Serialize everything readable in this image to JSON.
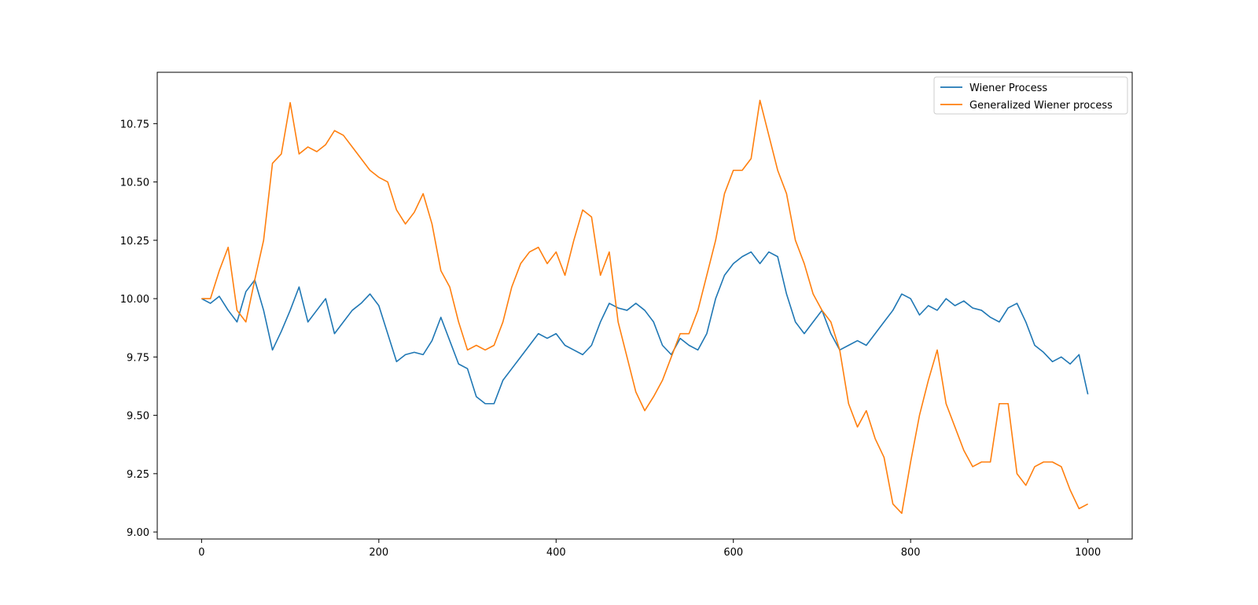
{
  "chart_data": {
    "type": "line",
    "title": "",
    "xlabel": "",
    "ylabel": "",
    "xlim": [
      -50,
      1050
    ],
    "ylim": [
      8.97,
      10.97
    ],
    "x_ticks": [
      0,
      200,
      400,
      600,
      800,
      1000
    ],
    "x_tick_labels": [
      "0",
      "200",
      "400",
      "600",
      "800",
      "1000"
    ],
    "y_ticks": [
      9.0,
      9.25,
      9.5,
      9.75,
      10.0,
      10.25,
      10.5,
      10.75
    ],
    "y_tick_labels": [
      "9.00",
      "9.25",
      "9.50",
      "9.75",
      "10.00",
      "10.25",
      "10.50",
      "10.75"
    ],
    "grid": false,
    "legend_position": "upper right",
    "x": [
      0,
      10,
      20,
      30,
      40,
      50,
      60,
      70,
      80,
      90,
      100,
      110,
      120,
      130,
      140,
      150,
      160,
      170,
      180,
      190,
      200,
      210,
      220,
      230,
      240,
      250,
      260,
      270,
      280,
      290,
      300,
      310,
      320,
      330,
      340,
      350,
      360,
      370,
      380,
      390,
      400,
      410,
      420,
      430,
      440,
      450,
      460,
      470,
      480,
      490,
      500,
      510,
      520,
      530,
      540,
      550,
      560,
      570,
      580,
      590,
      600,
      610,
      620,
      630,
      640,
      650,
      660,
      670,
      680,
      690,
      700,
      710,
      720,
      730,
      740,
      750,
      760,
      770,
      780,
      790,
      800,
      810,
      820,
      830,
      840,
      850,
      860,
      870,
      880,
      890,
      900,
      910,
      920,
      930,
      940,
      950,
      960,
      970,
      980,
      990,
      1000
    ],
    "series": [
      {
        "name": "Wiener Process",
        "color": "#1f77b4",
        "values": [
          10.0,
          9.98,
          10.01,
          9.95,
          9.9,
          10.03,
          10.08,
          9.95,
          9.78,
          9.86,
          9.95,
          10.05,
          9.9,
          9.95,
          10.0,
          9.85,
          9.9,
          9.95,
          9.98,
          10.02,
          9.97,
          9.85,
          9.73,
          9.76,
          9.77,
          9.76,
          9.82,
          9.92,
          9.82,
          9.72,
          9.7,
          9.58,
          9.55,
          9.55,
          9.65,
          9.7,
          9.75,
          9.8,
          9.85,
          9.83,
          9.85,
          9.8,
          9.78,
          9.76,
          9.8,
          9.9,
          9.98,
          9.96,
          9.95,
          9.98,
          9.95,
          9.9,
          9.8,
          9.76,
          9.83,
          9.8,
          9.78,
          9.85,
          10.0,
          10.1,
          10.15,
          10.18,
          10.2,
          10.15,
          10.2,
          10.18,
          10.02,
          9.9,
          9.85,
          9.9,
          9.95,
          9.85,
          9.78,
          9.8,
          9.82,
          9.8,
          9.85,
          9.9,
          9.95,
          10.02,
          10.0,
          9.93,
          9.97,
          9.95,
          10.0,
          9.97,
          9.99,
          9.96,
          9.95,
          9.92,
          9.9,
          9.96,
          9.98,
          9.9,
          9.8,
          9.77,
          9.73,
          9.75,
          9.72,
          9.76,
          9.59
        ]
      },
      {
        "name": "Generalized Wiener process",
        "color": "#ff7f0e",
        "values": [
          10.0,
          10.0,
          10.12,
          10.22,
          9.95,
          9.9,
          10.08,
          10.25,
          10.58,
          10.62,
          10.84,
          10.62,
          10.65,
          10.63,
          10.66,
          10.72,
          10.7,
          10.65,
          10.6,
          10.55,
          10.52,
          10.5,
          10.38,
          10.32,
          10.37,
          10.45,
          10.32,
          10.12,
          10.05,
          9.9,
          9.78,
          9.8,
          9.78,
          9.8,
          9.9,
          10.05,
          10.15,
          10.2,
          10.22,
          10.15,
          10.2,
          10.1,
          10.25,
          10.38,
          10.35,
          10.1,
          10.2,
          9.9,
          9.75,
          9.6,
          9.52,
          9.58,
          9.65,
          9.75,
          9.85,
          9.85,
          9.95,
          10.1,
          10.25,
          10.45,
          10.55,
          10.55,
          10.6,
          10.85,
          10.7,
          10.55,
          10.45,
          10.25,
          10.15,
          10.02,
          9.95,
          9.9,
          9.78,
          9.55,
          9.45,
          9.52,
          9.4,
          9.32,
          9.12,
          9.08,
          9.3,
          9.5,
          9.65,
          9.78,
          9.55,
          9.45,
          9.35,
          9.28,
          9.3,
          9.3,
          9.55,
          9.55,
          9.25,
          9.2,
          9.28,
          9.3,
          9.3,
          9.28,
          9.18,
          9.1,
          9.12
        ]
      }
    ]
  }
}
